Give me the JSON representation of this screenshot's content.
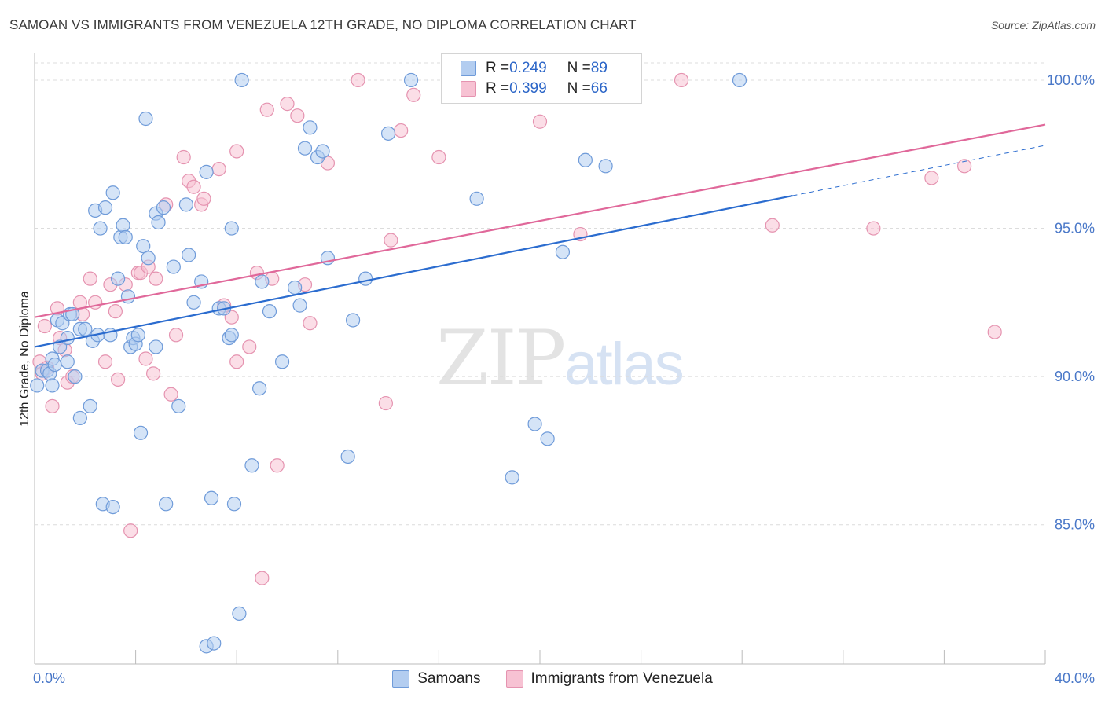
{
  "title": "SAMOAN VS IMMIGRANTS FROM VENEZUELA 12TH GRADE, NO DIPLOMA CORRELATION CHART",
  "source": "Source: ZipAtlas.com",
  "watermark": {
    "zip": "ZIP",
    "atlas": "atlas"
  },
  "colors": {
    "samoans_fill": "#b3cdf0",
    "samoans_stroke": "#6f9bd9",
    "samoans_line": "#2b6ccf",
    "venezuela_fill": "#f7c2d3",
    "venezuela_stroke": "#e593b0",
    "venezuela_line": "#e0689a",
    "grid": "#dcdcdc",
    "tick_text": "#4a78c8"
  },
  "legend": {
    "rows": [
      {
        "r_label": "R = ",
        "r_value": "0.249",
        "n_label": "N = ",
        "n_value": "89",
        "color": "#b3cdf0"
      },
      {
        "r_label": "R = ",
        "r_value": "0.399",
        "n_label": "N = ",
        "n_value": "66",
        "color": "#f7c2d3"
      }
    ]
  },
  "bottom_legend": [
    {
      "label": "Samoans",
      "color": "#b3cdf0"
    },
    {
      "label": "Immigrants from Venezuela",
      "color": "#f7c2d3"
    }
  ],
  "chart_data": {
    "type": "scatter",
    "title": "SAMOAN VS IMMIGRANTS FROM VENEZUELA 12TH GRADE, NO DIPLOMA CORRELATION CHART",
    "xlabel": "",
    "ylabel": "12th Grade, No Diploma",
    "xlim": [
      0,
      40
    ],
    "ylim": [
      80.3,
      100.9
    ],
    "x_tick_labels": [
      "0.0%",
      "40.0%"
    ],
    "y_ticks": [
      85,
      90,
      95,
      100
    ],
    "y_tick_labels": [
      "85.0%",
      "90.0%",
      "95.0%",
      "100.0%"
    ],
    "grid": true,
    "legend_placement": "top-center",
    "series": [
      {
        "name": "Samoans",
        "trend": {
          "x0": 0,
          "y0": 91.0,
          "x1": 30.0,
          "y1": 96.1,
          "dash_to_x": 40,
          "dash_to_y": 97.8
        },
        "points": [
          [
            0.3,
            90.2
          ],
          [
            0.5,
            90.2
          ],
          [
            0.6,
            90.1
          ],
          [
            0.7,
            89.7
          ],
          [
            0.7,
            90.6
          ],
          [
            0.8,
            90.4
          ],
          [
            0.9,
            91.9
          ],
          [
            1.0,
            91.0
          ],
          [
            1.1,
            91.8
          ],
          [
            1.3,
            90.5
          ],
          [
            1.3,
            91.3
          ],
          [
            1.4,
            92.1
          ],
          [
            1.5,
            92.1
          ],
          [
            1.6,
            90.0
          ],
          [
            1.8,
            88.6
          ],
          [
            1.8,
            91.6
          ],
          [
            2.0,
            91.6
          ],
          [
            2.2,
            89.0
          ],
          [
            2.3,
            91.2
          ],
          [
            2.4,
            95.6
          ],
          [
            2.5,
            91.4
          ],
          [
            2.6,
            95.0
          ],
          [
            2.8,
            95.7
          ],
          [
            2.7,
            85.7
          ],
          [
            3.0,
            91.4
          ],
          [
            3.1,
            96.2
          ],
          [
            3.1,
            85.6
          ],
          [
            3.3,
            93.3
          ],
          [
            3.4,
            94.7
          ],
          [
            3.5,
            95.1
          ],
          [
            3.6,
            94.7
          ],
          [
            3.7,
            92.7
          ],
          [
            3.8,
            91.0
          ],
          [
            3.9,
            91.3
          ],
          [
            4.0,
            91.1
          ],
          [
            4.1,
            91.4
          ],
          [
            4.2,
            88.1
          ],
          [
            4.3,
            94.4
          ],
          [
            4.4,
            98.7
          ],
          [
            4.5,
            94.0
          ],
          [
            4.8,
            91.0
          ],
          [
            4.8,
            95.5
          ],
          [
            4.9,
            95.2
          ],
          [
            5.1,
            95.7
          ],
          [
            5.2,
            85.7
          ],
          [
            5.5,
            93.7
          ],
          [
            5.7,
            89.0
          ],
          [
            6.0,
            95.8
          ],
          [
            6.1,
            94.1
          ],
          [
            6.3,
            92.5
          ],
          [
            6.6,
            93.2
          ],
          [
            6.8,
            96.9
          ],
          [
            6.8,
            80.9
          ],
          [
            7.0,
            85.9
          ],
          [
            7.1,
            81.0
          ],
          [
            7.3,
            92.3
          ],
          [
            7.5,
            92.3
          ],
          [
            7.7,
            91.3
          ],
          [
            7.8,
            91.4
          ],
          [
            7.8,
            95.0
          ],
          [
            7.9,
            85.7
          ],
          [
            8.1,
            82.0
          ],
          [
            8.2,
            100.0
          ],
          [
            8.6,
            87.0
          ],
          [
            8.9,
            89.6
          ],
          [
            9.0,
            93.2
          ],
          [
            9.3,
            92.2
          ],
          [
            9.8,
            90.5
          ],
          [
            10.3,
            93.0
          ],
          [
            10.5,
            92.4
          ],
          [
            10.7,
            97.7
          ],
          [
            10.9,
            98.4
          ],
          [
            11.2,
            97.4
          ],
          [
            11.4,
            97.6
          ],
          [
            11.6,
            94.0
          ],
          [
            12.4,
            87.3
          ],
          [
            12.6,
            91.9
          ],
          [
            13.1,
            93.3
          ],
          [
            14.0,
            98.2
          ],
          [
            14.9,
            100.0
          ],
          [
            17.5,
            96.0
          ],
          [
            18.9,
            86.6
          ],
          [
            19.8,
            88.4
          ],
          [
            20.3,
            87.9
          ],
          [
            20.9,
            94.2
          ],
          [
            21.8,
            97.3
          ],
          [
            22.6,
            97.1
          ],
          [
            27.9,
            100.0
          ],
          [
            0.1,
            89.7
          ]
        ]
      },
      {
        "name": "Immigrants from Venezuela",
        "trend": {
          "x0": 0,
          "y0": 92.0,
          "x1": 40,
          "y1": 98.5
        },
        "points": [
          [
            0.2,
            90.5
          ],
          [
            0.3,
            90.1
          ],
          [
            0.4,
            91.7
          ],
          [
            0.5,
            90.3
          ],
          [
            0.7,
            89.0
          ],
          [
            0.9,
            92.3
          ],
          [
            1.0,
            91.3
          ],
          [
            1.2,
            90.9
          ],
          [
            1.3,
            89.8
          ],
          [
            1.5,
            90.0
          ],
          [
            1.8,
            92.5
          ],
          [
            1.9,
            92.1
          ],
          [
            2.2,
            93.3
          ],
          [
            2.4,
            92.5
          ],
          [
            2.8,
            90.5
          ],
          [
            3.0,
            93.1
          ],
          [
            3.2,
            92.2
          ],
          [
            3.3,
            89.9
          ],
          [
            3.6,
            93.1
          ],
          [
            3.8,
            84.8
          ],
          [
            4.1,
            93.5
          ],
          [
            4.2,
            93.5
          ],
          [
            4.4,
            90.6
          ],
          [
            4.5,
            93.7
          ],
          [
            4.8,
            93.3
          ],
          [
            4.7,
            90.1
          ],
          [
            5.2,
            95.8
          ],
          [
            5.4,
            89.4
          ],
          [
            5.6,
            91.4
          ],
          [
            5.9,
            97.4
          ],
          [
            6.1,
            96.6
          ],
          [
            6.3,
            96.4
          ],
          [
            6.6,
            95.8
          ],
          [
            6.7,
            96.0
          ],
          [
            7.3,
            97.0
          ],
          [
            7.5,
            92.4
          ],
          [
            7.8,
            92.0
          ],
          [
            8.0,
            97.6
          ],
          [
            8.0,
            90.5
          ],
          [
            8.5,
            91.0
          ],
          [
            8.8,
            93.5
          ],
          [
            9.0,
            83.2
          ],
          [
            9.2,
            99.0
          ],
          [
            9.4,
            93.3
          ],
          [
            9.6,
            87.0
          ],
          [
            10.0,
            99.2
          ],
          [
            10.4,
            98.8
          ],
          [
            10.7,
            93.1
          ],
          [
            10.9,
            91.8
          ],
          [
            11.6,
            97.2
          ],
          [
            12.8,
            100.0
          ],
          [
            13.9,
            89.1
          ],
          [
            14.1,
            94.6
          ],
          [
            14.5,
            98.3
          ],
          [
            15.0,
            99.5
          ],
          [
            16.0,
            97.4
          ],
          [
            17.8,
            99.8
          ],
          [
            20.0,
            98.6
          ],
          [
            21.6,
            94.8
          ],
          [
            23.2,
            100.0
          ],
          [
            29.2,
            95.1
          ],
          [
            33.2,
            95.0
          ],
          [
            35.5,
            96.7
          ],
          [
            36.8,
            97.1
          ],
          [
            38.0,
            91.5
          ],
          [
            25.6,
            100.0
          ]
        ]
      }
    ]
  }
}
